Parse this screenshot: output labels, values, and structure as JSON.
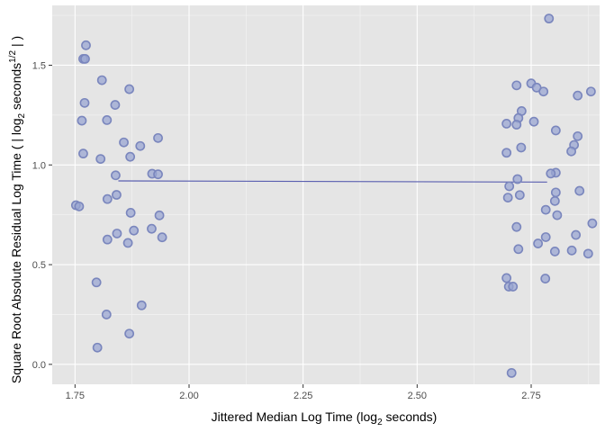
{
  "chart_data": {
    "type": "scatter",
    "xlabel": "Jittered Median Log Time (log",
    "xlabel_sub": "2",
    "xlabel_end": " seconds)",
    "ylabel": "Square Root Absolute Residual Log Time ( | log",
    "ylabel_sub": "2",
    "ylabel_mid": " seconds",
    "ylabel_sup": "1/2",
    "ylabel_end": " | )",
    "xlim": [
      1.7,
      2.9
    ],
    "ylim": [
      -0.1,
      1.8
    ],
    "x_ticks": [
      1.75,
      2.0,
      2.25,
      2.5,
      2.75
    ],
    "x_tick_labels": [
      "1.75",
      "2.00",
      "2.25",
      "2.50",
      "2.75"
    ],
    "y_ticks": [
      0.0,
      0.5,
      1.0,
      1.5
    ],
    "y_tick_labels": [
      "0.0",
      "0.5",
      "1.0",
      "1.5"
    ],
    "grid": true,
    "point_color": "#9aa6d2",
    "point_edge_color": "#7a86bd",
    "line_color": "#5a5fb0",
    "panel_color": "#e5e5e5",
    "points": [
      {
        "x": 1.774,
        "y": 1.6
      },
      {
        "x": 1.768,
        "y": 1.532
      },
      {
        "x": 1.772,
        "y": 1.532
      },
      {
        "x": 1.809,
        "y": 1.425
      },
      {
        "x": 1.869,
        "y": 1.38
      },
      {
        "x": 1.771,
        "y": 1.311
      },
      {
        "x": 1.838,
        "y": 1.301
      },
      {
        "x": 1.765,
        "y": 1.222
      },
      {
        "x": 1.82,
        "y": 1.225
      },
      {
        "x": 1.932,
        "y": 1.135
      },
      {
        "x": 1.857,
        "y": 1.113
      },
      {
        "x": 1.893,
        "y": 1.095
      },
      {
        "x": 1.768,
        "y": 1.057
      },
      {
        "x": 1.871,
        "y": 1.041
      },
      {
        "x": 1.806,
        "y": 1.03
      },
      {
        "x": 1.919,
        "y": 0.956
      },
      {
        "x": 1.932,
        "y": 0.953
      },
      {
        "x": 1.839,
        "y": 0.948
      },
      {
        "x": 1.841,
        "y": 0.85
      },
      {
        "x": 1.821,
        "y": 0.829
      },
      {
        "x": 1.752,
        "y": 0.798
      },
      {
        "x": 1.759,
        "y": 0.792
      },
      {
        "x": 1.872,
        "y": 0.76
      },
      {
        "x": 1.935,
        "y": 0.747
      },
      {
        "x": 1.918,
        "y": 0.68
      },
      {
        "x": 1.879,
        "y": 0.671
      },
      {
        "x": 1.842,
        "y": 0.656
      },
      {
        "x": 1.941,
        "y": 0.637
      },
      {
        "x": 1.821,
        "y": 0.626
      },
      {
        "x": 1.866,
        "y": 0.609
      },
      {
        "x": 1.797,
        "y": 0.411
      },
      {
        "x": 1.896,
        "y": 0.296
      },
      {
        "x": 1.819,
        "y": 0.25
      },
      {
        "x": 1.869,
        "y": 0.154
      },
      {
        "x": 1.799,
        "y": 0.084
      },
      {
        "x": 2.789,
        "y": 1.734
      },
      {
        "x": 2.75,
        "y": 1.409
      },
      {
        "x": 2.718,
        "y": 1.399
      },
      {
        "x": 2.762,
        "y": 1.388
      },
      {
        "x": 2.777,
        "y": 1.368
      },
      {
        "x": 2.881,
        "y": 1.368
      },
      {
        "x": 2.852,
        "y": 1.348
      },
      {
        "x": 2.729,
        "y": 1.27
      },
      {
        "x": 2.722,
        "y": 1.235
      },
      {
        "x": 2.756,
        "y": 1.217
      },
      {
        "x": 2.696,
        "y": 1.207
      },
      {
        "x": 2.718,
        "y": 1.202
      },
      {
        "x": 2.804,
        "y": 1.173
      },
      {
        "x": 2.852,
        "y": 1.144
      },
      {
        "x": 2.844,
        "y": 1.1
      },
      {
        "x": 2.728,
        "y": 1.087
      },
      {
        "x": 2.838,
        "y": 1.068
      },
      {
        "x": 2.696,
        "y": 1.061
      },
      {
        "x": 2.804,
        "y": 0.961
      },
      {
        "x": 2.793,
        "y": 0.957
      },
      {
        "x": 2.72,
        "y": 0.929
      },
      {
        "x": 2.702,
        "y": 0.893
      },
      {
        "x": 2.804,
        "y": 0.862
      },
      {
        "x": 2.856,
        "y": 0.87
      },
      {
        "x": 2.725,
        "y": 0.849
      },
      {
        "x": 2.699,
        "y": 0.836
      },
      {
        "x": 2.802,
        "y": 0.819
      },
      {
        "x": 2.782,
        "y": 0.775
      },
      {
        "x": 2.807,
        "y": 0.748
      },
      {
        "x": 2.884,
        "y": 0.707
      },
      {
        "x": 2.718,
        "y": 0.689
      },
      {
        "x": 2.848,
        "y": 0.649
      },
      {
        "x": 2.782,
        "y": 0.638
      },
      {
        "x": 2.765,
        "y": 0.606
      },
      {
        "x": 2.722,
        "y": 0.578
      },
      {
        "x": 2.839,
        "y": 0.571
      },
      {
        "x": 2.802,
        "y": 0.566
      },
      {
        "x": 2.875,
        "y": 0.555
      },
      {
        "x": 2.696,
        "y": 0.433
      },
      {
        "x": 2.781,
        "y": 0.43
      },
      {
        "x": 2.701,
        "y": 0.39
      },
      {
        "x": 2.71,
        "y": 0.39
      },
      {
        "x": 2.707,
        "y": -0.043
      }
    ],
    "fit_line": [
      {
        "x": 1.845,
        "y": 0.92
      },
      {
        "x": 2.785,
        "y": 0.914
      }
    ]
  }
}
